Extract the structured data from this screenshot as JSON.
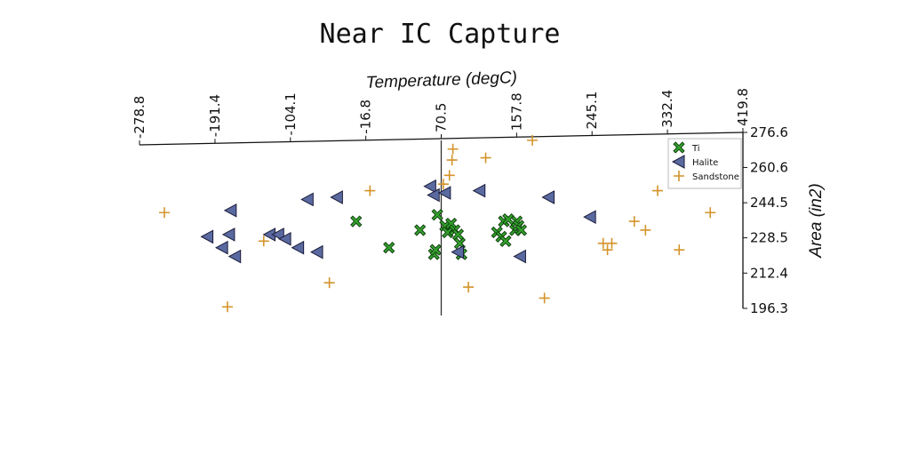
{
  "chart_data": {
    "type": "scatter",
    "title": "Near IC Capture",
    "xlabel": "Temperature (degC)",
    "ylabel": "Area (in2)",
    "xlim": [
      -278.8,
      419.8
    ],
    "ylim": [
      196.3,
      276.6
    ],
    "x_ticks": [
      "-278.8",
      "-191.4",
      "-104.1",
      "-16.8",
      "70.5",
      "157.8",
      "245.1",
      "332.4",
      "419.8"
    ],
    "y_ticks": [
      "276.6",
      "260.6",
      "244.5",
      "228.5",
      "212.4",
      "196.3"
    ],
    "grid": false,
    "legend_position": "top-right",
    "series": [
      {
        "name": "Ti",
        "marker": "x-filled",
        "color": "#33a02c",
        "points": [
          [
            -28,
            236
          ],
          [
            10,
            224
          ],
          [
            46,
            232
          ],
          [
            62,
            221
          ],
          [
            64,
            223
          ],
          [
            66,
            239
          ],
          [
            75,
            234
          ],
          [
            78,
            231
          ],
          [
            82,
            235
          ],
          [
            86,
            232
          ],
          [
            90,
            230
          ],
          [
            92,
            226
          ],
          [
            94,
            221
          ],
          [
            135,
            231
          ],
          [
            140,
            229
          ],
          [
            143,
            236
          ],
          [
            145,
            227
          ],
          [
            156,
            232
          ],
          [
            158,
            236
          ],
          [
            160,
            234
          ],
          [
            163,
            232
          ],
          [
            148,
            237
          ]
        ]
      },
      {
        "name": "Halite",
        "marker": "triangle-left",
        "color": "#5a6aa0",
        "points": [
          [
            -173,
            241
          ],
          [
            -200,
            229
          ],
          [
            -175,
            230
          ],
          [
            -183,
            224
          ],
          [
            -168,
            220
          ],
          [
            -128,
            230
          ],
          [
            -118,
            230
          ],
          [
            -110,
            228
          ],
          [
            -95,
            224
          ],
          [
            -73,
            222
          ],
          [
            -84,
            246
          ],
          [
            -50,
            247
          ],
          [
            58,
            252
          ],
          [
            62,
            248
          ],
          [
            75,
            249
          ],
          [
            90,
            222
          ],
          [
            115,
            250
          ],
          [
            162,
            220
          ],
          [
            195,
            247
          ],
          [
            243,
            238
          ]
        ]
      },
      {
        "name": "Sandstone",
        "marker": "plus",
        "color": "#d4942a",
        "points": [
          [
            -250,
            240
          ],
          [
            -177,
            197
          ],
          [
            -135,
            227
          ],
          [
            -59,
            208
          ],
          [
            -12,
            250
          ],
          [
            73,
            253
          ],
          [
            80,
            257
          ],
          [
            84,
            269
          ],
          [
            83,
            264
          ],
          [
            122,
            265
          ],
          [
            176,
            273
          ],
          [
            102,
            206
          ],
          [
            190,
            201
          ],
          [
            258,
            226
          ],
          [
            263,
            223
          ],
          [
            268,
            226
          ],
          [
            294,
            236
          ],
          [
            307,
            232
          ],
          [
            321,
            250
          ],
          [
            346,
            223
          ],
          [
            382,
            240
          ]
        ]
      }
    ]
  }
}
